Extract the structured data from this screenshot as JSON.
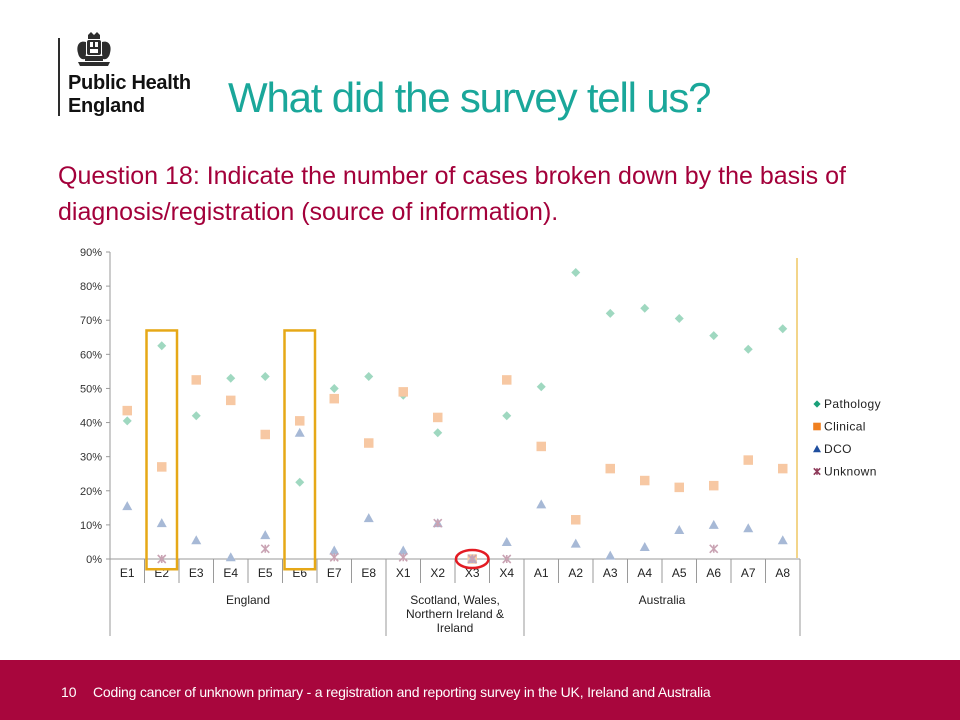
{
  "logo": {
    "line1": "Public Health",
    "line2": "England",
    "crest_icon": "royal-crest-icon"
  },
  "slide": {
    "title": "What did the survey tell us?",
    "subtitle": "Question 18: Indicate the number of cases broken down by the basis of diagnosis/registration  (source of information)."
  },
  "footer": {
    "page_number": "10",
    "text": "Coding cancer of unknown primary - a registration and reporting survey in the UK, Ireland and Australia"
  },
  "chart_data": {
    "type": "scatter",
    "title": "",
    "xlabel": "",
    "ylabel": "",
    "ylim": [
      0,
      90
    ],
    "yticks": [
      "0%",
      "10%",
      "20%",
      "30%",
      "40%",
      "50%",
      "60%",
      "70%",
      "80%",
      "90%"
    ],
    "categories": [
      "E1",
      "E2",
      "E3",
      "E4",
      "E5",
      "E6",
      "E7",
      "E8",
      "X1",
      "X2",
      "X3",
      "X4",
      "A1",
      "A2",
      "A3",
      "A4",
      "A5",
      "A6",
      "A7",
      "A8"
    ],
    "groups": [
      {
        "label_lines": [
          "England"
        ],
        "from": 0,
        "to": 7
      },
      {
        "label_lines": [
          "Scotland, Wales,",
          "Northern Ireland &",
          "Ireland"
        ],
        "from": 8,
        "to": 11
      },
      {
        "label_lines": [
          "Australia"
        ],
        "from": 12,
        "to": 19
      }
    ],
    "legend_position": "right",
    "grid": false,
    "series": [
      {
        "name": "Pathology",
        "marker": "diamond",
        "color": "#9fd8c0",
        "legend_color": "#1aa079",
        "values": [
          40.5,
          62.5,
          42,
          53,
          53.5,
          22.5,
          50,
          53.5,
          48,
          37,
          0,
          42,
          50.5,
          84,
          72,
          73.5,
          70.5,
          65.5,
          61.5,
          67.5
        ]
      },
      {
        "name": "Clinical",
        "marker": "square",
        "color": "#f7c8a3",
        "legend_color": "#f08020",
        "values": [
          43.5,
          27,
          52.5,
          46.5,
          36.5,
          40.5,
          47,
          34,
          49,
          41.5,
          0,
          52.5,
          33,
          11.5,
          26.5,
          23,
          21,
          21.5,
          29,
          26.5
        ]
      },
      {
        "name": "DCO",
        "marker": "triangle",
        "color": "#a7b9d6",
        "legend_color": "#1f4e9e",
        "values": [
          15.5,
          10.5,
          5.5,
          0.5,
          7,
          37,
          2.5,
          12,
          2.5,
          10.5,
          0,
          5,
          16,
          4.5,
          1,
          3.5,
          8.5,
          10,
          9,
          5.5
        ]
      },
      {
        "name": "Unknown",
        "marker": "x",
        "color": "#c9a3b3",
        "legend_color": "#8e3a5a",
        "values": [
          null,
          0,
          null,
          null,
          3,
          null,
          0.5,
          null,
          0.5,
          10.5,
          0,
          0,
          null,
          null,
          null,
          null,
          null,
          3,
          null,
          null
        ]
      }
    ],
    "annotations": [
      {
        "shape": "rect",
        "color": "#e6a817",
        "category": "E2",
        "y_range": [
          -3,
          67
        ]
      },
      {
        "shape": "rect",
        "color": "#e6a817",
        "category": "E6",
        "y_range": [
          -3,
          67
        ]
      },
      {
        "shape": "ellipse",
        "color": "#e31b23",
        "category": "X3",
        "y": 0
      }
    ]
  }
}
